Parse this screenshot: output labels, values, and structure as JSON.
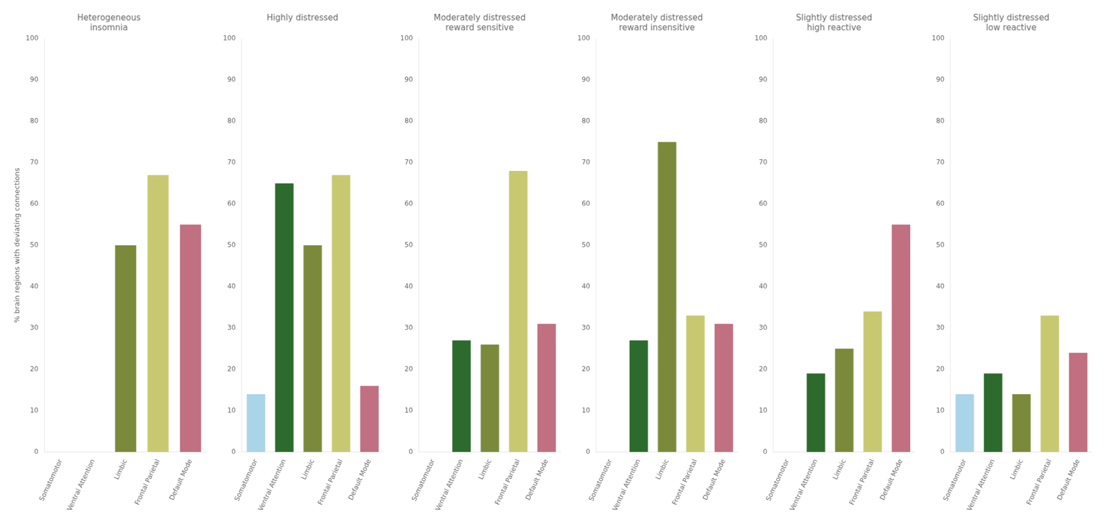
{
  "chart_data": [
    {
      "type": "bar",
      "title": "Heterogeneous\ninsomnia",
      "categories": [
        "Somatomotor",
        "Ventral Attention",
        "Limbic",
        "Frontal Parietal",
        "Default Mode"
      ],
      "values": [
        0,
        0,
        50,
        67,
        55
      ],
      "colors": [
        "#aad4e8",
        "#2d6a2d",
        "#7a8a3a",
        "#c8c870",
        "#c07080"
      ],
      "ylabel": "% brain regions with deviating connections",
      "ylim": [
        0,
        100
      ],
      "yticks": [
        0,
        10,
        20,
        30,
        40,
        50,
        60,
        70,
        80,
        90,
        100
      ],
      "grid": false
    },
    {
      "type": "bar",
      "title": "Highly distressed",
      "categories": [
        "Somatomotor",
        "Ventral Attention",
        "Limbic",
        "Frontal Parietal",
        "Default Mode"
      ],
      "values": [
        14,
        65,
        50,
        67,
        16
      ],
      "colors": [
        "#aad4e8",
        "#2d6a2d",
        "#7a8a3a",
        "#c8c870",
        "#c07080"
      ],
      "ylim": [
        0,
        100
      ],
      "yticks": [
        0,
        10,
        20,
        30,
        40,
        50,
        60,
        70,
        80,
        90,
        100
      ],
      "grid": false
    },
    {
      "type": "bar",
      "title": "Moderately distressed\nreward sensitive",
      "categories": [
        "Somatomotor",
        "Ventral Attention",
        "Limbic",
        "Frontal Parietal",
        "Default Mode"
      ],
      "values": [
        0,
        27,
        26,
        68,
        31
      ],
      "colors": [
        "#aad4e8",
        "#2d6a2d",
        "#7a8a3a",
        "#c8c870",
        "#c07080"
      ],
      "ylim": [
        0,
        100
      ],
      "yticks": [
        0,
        10,
        20,
        30,
        40,
        50,
        60,
        70,
        80,
        90,
        100
      ],
      "grid": false
    },
    {
      "type": "bar",
      "title": "Moderately distressed\nreward insensitive",
      "categories": [
        "Somatomotor",
        "Ventral Attention",
        "Limbic",
        "Frontal Parietal",
        "Default Mode"
      ],
      "values": [
        0,
        27,
        75,
        33,
        31
      ],
      "colors": [
        "#aad4e8",
        "#2d6a2d",
        "#7a8a3a",
        "#c8c870",
        "#c07080"
      ],
      "ylim": [
        0,
        100
      ],
      "yticks": [
        0,
        10,
        20,
        30,
        40,
        50,
        60,
        70,
        80,
        90,
        100
      ],
      "grid": false
    },
    {
      "type": "bar",
      "title": "Slightly distressed\nhigh reactive",
      "categories": [
        "Somatomotor",
        "Ventral Attention",
        "Limbic",
        "Frontal Parietal",
        "Default Mode"
      ],
      "values": [
        0,
        19,
        25,
        34,
        55
      ],
      "colors": [
        "#aad4e8",
        "#2d6a2d",
        "#7a8a3a",
        "#c8c870",
        "#c07080"
      ],
      "ylim": [
        0,
        100
      ],
      "yticks": [
        0,
        10,
        20,
        30,
        40,
        50,
        60,
        70,
        80,
        90,
        100
      ],
      "grid": false
    },
    {
      "type": "bar",
      "title": "Slightly distressed\nlow reactive",
      "categories": [
        "Somatomotor",
        "Ventral Attention",
        "Limbic",
        "Frontal Parietal",
        "Default Mode"
      ],
      "values": [
        14,
        19,
        14,
        33,
        24
      ],
      "colors": [
        "#aad4e8",
        "#2d6a2d",
        "#7a8a3a",
        "#c8c870",
        "#c07080"
      ],
      "ylim": [
        0,
        100
      ],
      "yticks": [
        0,
        10,
        20,
        30,
        40,
        50,
        60,
        70,
        80,
        90,
        100
      ],
      "grid": false
    }
  ]
}
